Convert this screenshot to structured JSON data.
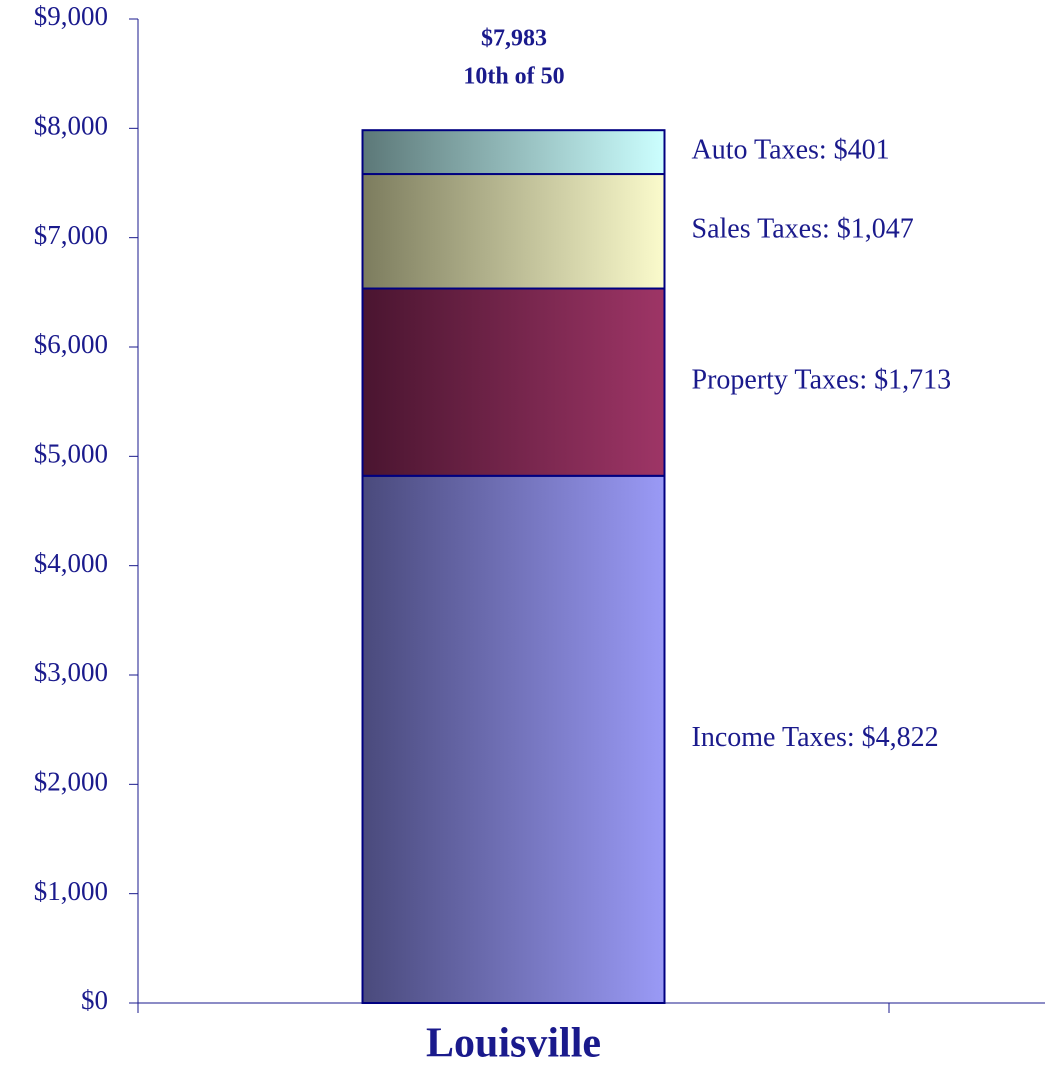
{
  "chart_data": {
    "type": "stacked_bar",
    "categories": [
      "Louisville"
    ],
    "annotations": [
      "$7,983",
      "10th of 50"
    ],
    "series": [
      {
        "values": [
          4822
        ],
        "value_labels": [
          "Income Taxes: $4,822"
        ],
        "gradient": [
          "#4a4a7c",
          "#9a9af6"
        ]
      },
      {
        "values": [
          1713
        ],
        "value_labels": [
          "Property Taxes: $1,713"
        ],
        "gradient": [
          "#4a1530",
          "#9e3566"
        ]
      },
      {
        "values": [
          1047
        ],
        "value_labels": [
          "Sales Taxes: $1,047"
        ],
        "gradient": [
          "#7c7c5e",
          "#fbfbcc"
        ]
      },
      {
        "values": [
          401
        ],
        "value_labels": [
          "Auto Taxes: $401"
        ],
        "gradient": [
          "#5c7878",
          "#ccffff"
        ]
      }
    ],
    "ylim": [
      0,
      9000
    ],
    "yticks": [
      {
        "value": 0,
        "label": "$0"
      },
      {
        "value": 1000,
        "label": "$1,000"
      },
      {
        "value": 2000,
        "label": "$2,000"
      },
      {
        "value": 3000,
        "label": "$3,000"
      },
      {
        "value": 4000,
        "label": "$4,000"
      },
      {
        "value": 5000,
        "label": "$5,000"
      },
      {
        "value": 6000,
        "label": "$6,000"
      },
      {
        "value": 7000,
        "label": "$7,000"
      },
      {
        "value": 8000,
        "label": "$8,000"
      },
      {
        "value": 9000,
        "label": "$9,000"
      }
    ]
  }
}
